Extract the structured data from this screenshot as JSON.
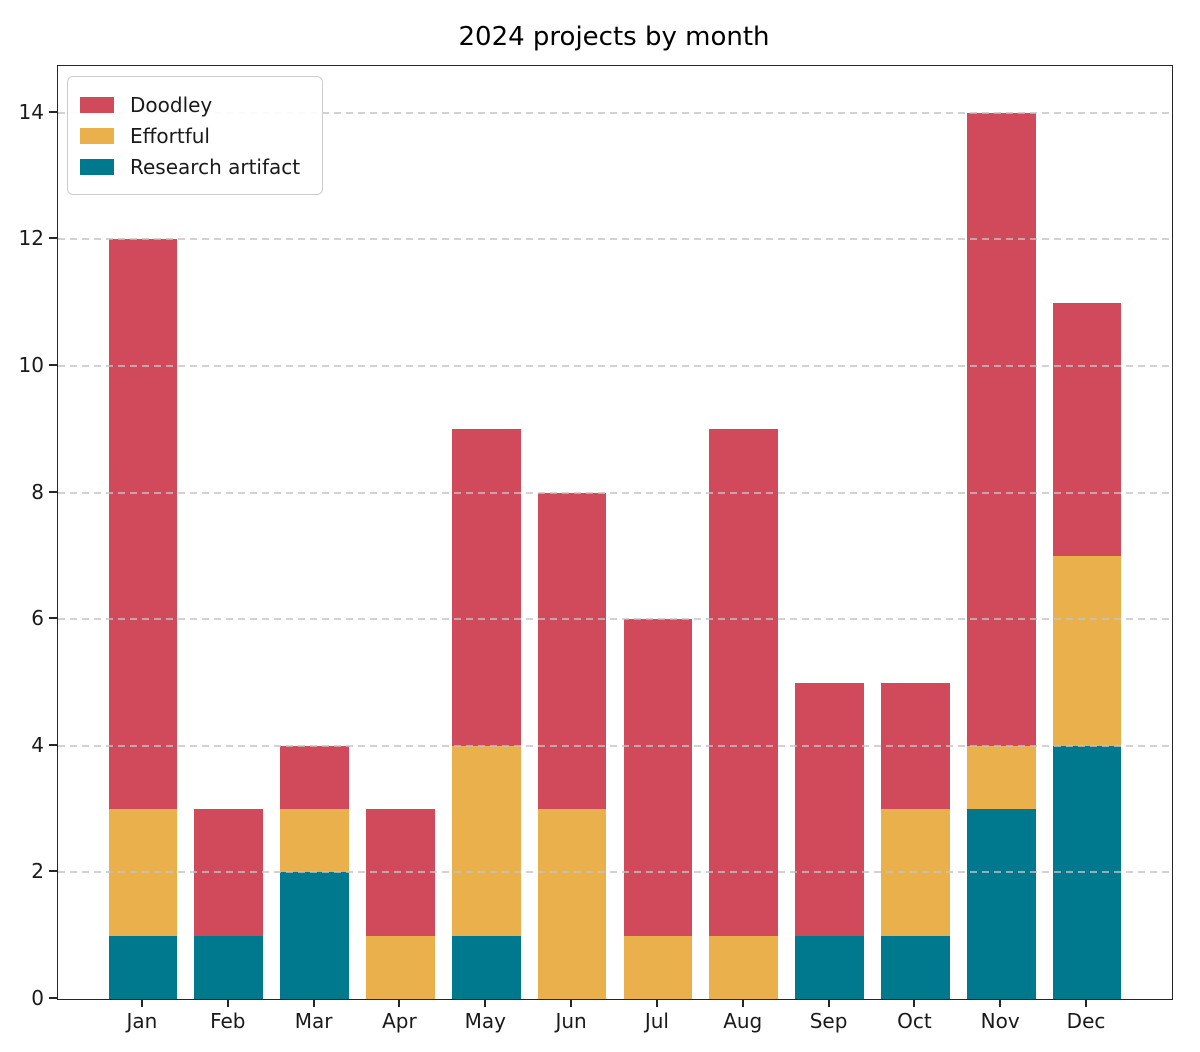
{
  "chart_data": {
    "type": "bar",
    "stacked": true,
    "title": "2024 projects by month",
    "categories": [
      "Jan",
      "Feb",
      "Mar",
      "Apr",
      "May",
      "Jun",
      "Jul",
      "Aug",
      "Sep",
      "Oct",
      "Nov",
      "Dec"
    ],
    "series": [
      {
        "name": "Doodley",
        "color": "#d14a5c",
        "values": [
          9,
          2,
          1,
          2,
          5,
          5,
          5,
          8,
          4,
          2,
          10,
          4
        ]
      },
      {
        "name": "Effortful",
        "color": "#eab04c",
        "values": [
          2,
          0,
          1,
          1,
          3,
          3,
          1,
          1,
          0,
          2,
          1,
          3
        ]
      },
      {
        "name": "Research artifact",
        "color": "#00798e",
        "values": [
          1,
          1,
          2,
          0,
          1,
          0,
          0,
          0,
          1,
          1,
          3,
          4
        ]
      }
    ],
    "stack_order_bottom_to_top": [
      "Research artifact",
      "Effortful",
      "Doodley"
    ],
    "totals": [
      12,
      3,
      4,
      3,
      9,
      8,
      6,
      9,
      5,
      5,
      14,
      11
    ],
    "xlabel": "",
    "ylabel": "",
    "ylim": [
      0,
      14.74
    ],
    "yticks": [
      0,
      2,
      4,
      6,
      8,
      10,
      12,
      14
    ],
    "grid": "horizontal-dashed",
    "legend_position": "upper-left",
    "colors": {
      "doodley": "#d14a5c",
      "effortful": "#eab04c",
      "research_artifact": "#00798e",
      "gridline": "#c3c3c3",
      "axis": "#262626",
      "background": "#ffffff"
    }
  }
}
